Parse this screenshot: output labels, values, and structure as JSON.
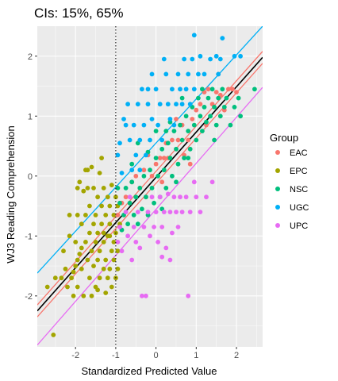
{
  "chart_data": {
    "type": "scatter",
    "title": "CIs: 15%, 65%",
    "xlabel": "Standardized Predicted Value",
    "ylabel": "WJ3 Reading Comprehension",
    "xlim": [
      -2.95,
      2.65
    ],
    "ylim": [
      -2.85,
      2.5
    ],
    "x_ticks": [
      -2,
      -1,
      0,
      1,
      2
    ],
    "y_ticks": [
      -2,
      -1,
      0,
      1,
      2
    ],
    "x_tick_labels": [
      "-2",
      "-1",
      "0",
      "1",
      "2"
    ],
    "y_tick_labels": [
      "-2",
      "-1",
      "0",
      "1",
      "2"
    ],
    "grid": true,
    "background": "#ebebeb",
    "reference_line": {
      "orientation": "vertical",
      "x": -1,
      "style": "dotted"
    },
    "legend": {
      "title": "Group",
      "position": "right",
      "entries": [
        {
          "label": "EAC",
          "color": "#f8766d"
        },
        {
          "label": "EPC",
          "color": "#a3a500"
        },
        {
          "label": "NSC",
          "color": "#00bf7d"
        },
        {
          "label": "UGC",
          "color": "#00b0f6"
        },
        {
          "label": "UPC",
          "color": "#e76bf3"
        }
      ]
    },
    "lines": [
      {
        "group": "UGC",
        "color": "#00b0f6",
        "x": [
          -2.95,
          2.65
        ],
        "y": [
          -1.62,
          2.5
        ]
      },
      {
        "group": "EAC",
        "color": "#f8766d",
        "x": [
          -2.95,
          2.65
        ],
        "y": [
          -2.15,
          2.08
        ]
      },
      {
        "group": "EAC",
        "color": "#f8766d",
        "x": [
          -2.95,
          2.65
        ],
        "y": [
          -2.35,
          1.88
        ]
      },
      {
        "group": "overall",
        "color": "#000000",
        "x": [
          -2.95,
          2.65
        ],
        "y": [
          -2.25,
          1.98
        ]
      },
      {
        "group": "UPC",
        "color": "#e76bf3",
        "x": [
          -2.95,
          2.65
        ],
        "y": [
          -2.82,
          1.48
        ]
      }
    ],
    "series": [
      {
        "name": "EPC",
        "color": "#a3a500",
        "points": [
          [
            -2.7,
            -1.85
          ],
          [
            -2.55,
            -2.65
          ],
          [
            -2.5,
            -1.7
          ],
          [
            -2.35,
            -1.7
          ],
          [
            -2.3,
            -1.25
          ],
          [
            -2.25,
            -1.55
          ],
          [
            -2.2,
            -1.85
          ],
          [
            -2.15,
            -0.65
          ],
          [
            -2.1,
            -1.7
          ],
          [
            -2.05,
            -2.0
          ],
          [
            -2.0,
            -1.1
          ],
          [
            -2.0,
            -1.5
          ],
          [
            -1.95,
            -0.65
          ],
          [
            -1.95,
            -1.85
          ],
          [
            -1.9,
            -1.3
          ],
          [
            -1.85,
            -0.8
          ],
          [
            -1.85,
            -1.55
          ],
          [
            -1.8,
            -2.0
          ],
          [
            -1.8,
            -0.25
          ],
          [
            -1.75,
            -1.1
          ],
          [
            -1.75,
            -0.65
          ],
          [
            -1.7,
            -1.4
          ],
          [
            -1.7,
            0.1
          ],
          [
            -1.65,
            -0.95
          ],
          [
            -1.65,
            -1.7
          ],
          [
            -1.65,
            -0.5
          ],
          [
            -1.6,
            -1.25
          ],
          [
            -1.6,
            -2.0
          ],
          [
            -1.55,
            -1.5
          ],
          [
            -1.55,
            -0.8
          ],
          [
            -1.55,
            -0.2
          ],
          [
            -1.5,
            -1.1
          ],
          [
            -1.5,
            -0.65
          ],
          [
            -1.5,
            -1.85
          ],
          [
            -1.45,
            -1.4
          ],
          [
            -1.45,
            -0.95
          ],
          [
            -1.45,
            -0.35
          ],
          [
            -1.4,
            -1.25
          ],
          [
            -1.4,
            0.05
          ],
          [
            -1.4,
            -1.7
          ],
          [
            -1.35,
            -0.5
          ],
          [
            -1.35,
            -0.8
          ],
          [
            -1.3,
            -1.55
          ],
          [
            -1.3,
            -1.1
          ],
          [
            -1.3,
            -0.2
          ],
          [
            -1.25,
            -1.4
          ],
          [
            -1.25,
            -0.65
          ],
          [
            -1.25,
            -1.95
          ],
          [
            -1.2,
            -1.0
          ],
          [
            -1.2,
            -0.35
          ],
          [
            -1.2,
            -1.7
          ],
          [
            -1.15,
            -1.55
          ],
          [
            -1.15,
            -0.8
          ],
          [
            -1.15,
            -0.5
          ],
          [
            -1.1,
            -1.25
          ],
          [
            -1.1,
            -1.85
          ],
          [
            -1.1,
            -0.15
          ],
          [
            -1.05,
            -1.1
          ],
          [
            -1.05,
            -0.65
          ],
          [
            -1.05,
            -1.4
          ],
          [
            -1.0,
            -0.95
          ],
          [
            -1.0,
            -0.35
          ],
          [
            -1.0,
            -1.7
          ],
          [
            -0.95,
            -1.25
          ],
          [
            -0.95,
            -0.5
          ],
          [
            -0.95,
            -1.55
          ],
          [
            -1.35,
            0.3
          ],
          [
            -1.75,
            0.1
          ],
          [
            -1.95,
            -0.2
          ],
          [
            -2.15,
            -1.0
          ],
          [
            -1.6,
            0.15
          ],
          [
            -1.9,
            -0.1
          ],
          [
            -1.85,
            -1.2
          ],
          [
            -1.45,
            -1.9
          ],
          [
            -2.05,
            -1.6
          ],
          [
            -1.15,
            -1.0
          ],
          [
            -0.9,
            -0.8
          ],
          [
            -1.7,
            -0.2
          ],
          [
            -1.3,
            -0.95
          ],
          [
            -1.95,
            -1.4
          ]
        ]
      },
      {
        "name": "EAC",
        "color": "#f8766d",
        "points": [
          [
            -0.95,
            -0.65
          ],
          [
            -0.85,
            -0.45
          ],
          [
            -0.75,
            -0.35
          ],
          [
            -0.6,
            -0.1
          ],
          [
            -0.5,
            0.0
          ],
          [
            -0.4,
            -0.2
          ],
          [
            -0.3,
            0.1
          ],
          [
            -0.2,
            0.35
          ],
          [
            -0.1,
            0.0
          ],
          [
            0.0,
            0.2
          ],
          [
            0.1,
            0.3
          ],
          [
            0.2,
            0.3
          ],
          [
            0.3,
            0.3
          ],
          [
            0.4,
            0.6
          ],
          [
            0.55,
            0.6
          ],
          [
            0.65,
            0.85
          ],
          [
            0.7,
            0.35
          ],
          [
            0.8,
            0.6
          ],
          [
            0.9,
            0.95
          ],
          [
            1.0,
            1.1
          ],
          [
            1.1,
            1.2
          ],
          [
            1.2,
            1.4
          ],
          [
            1.3,
            1.45
          ],
          [
            1.4,
            1.2
          ],
          [
            1.5,
            1.4
          ],
          [
            1.6,
            1.35
          ],
          [
            1.7,
            1.1
          ],
          [
            1.8,
            1.45
          ],
          [
            1.9,
            1.45
          ],
          [
            2.0,
            1.4
          ],
          [
            0.25,
            0.55
          ],
          [
            -0.25,
            -0.35
          ],
          [
            0.5,
            0.95
          ],
          [
            1.25,
            0.85
          ],
          [
            -0.65,
            -0.45
          ],
          [
            0.15,
            -0.1
          ],
          [
            0.85,
            0.2
          ],
          [
            1.55,
            1.7
          ]
        ]
      },
      {
        "name": "NSC",
        "color": "#00bf7d",
        "points": [
          [
            -0.95,
            -0.2
          ],
          [
            -0.9,
            -0.45
          ],
          [
            -0.8,
            -0.65
          ],
          [
            -0.75,
            -0.2
          ],
          [
            -0.7,
            -0.8
          ],
          [
            -0.65,
            -0.45
          ],
          [
            -0.6,
            -0.1
          ],
          [
            -0.55,
            -0.65
          ],
          [
            -0.5,
            -0.35
          ],
          [
            -0.45,
            -0.8
          ],
          [
            -0.4,
            -0.2
          ],
          [
            -0.35,
            -0.55
          ],
          [
            -0.3,
            0.0
          ],
          [
            -0.25,
            -0.35
          ],
          [
            -0.2,
            -0.65
          ],
          [
            -0.15,
            0.1
          ],
          [
            -0.1,
            -0.2
          ],
          [
            -0.05,
            -0.45
          ],
          [
            0.0,
            0.3
          ],
          [
            0.05,
            0.0
          ],
          [
            0.1,
            -0.35
          ],
          [
            0.15,
            0.45
          ],
          [
            0.2,
            0.1
          ],
          [
            0.25,
            -0.2
          ],
          [
            0.3,
            0.55
          ],
          [
            0.35,
            0.3
          ],
          [
            0.4,
            0.0
          ],
          [
            0.45,
            0.75
          ],
          [
            0.5,
            0.45
          ],
          [
            0.55,
            0.2
          ],
          [
            0.6,
            0.85
          ],
          [
            0.65,
            0.6
          ],
          [
            0.7,
            0.3
          ],
          [
            0.75,
            1.0
          ],
          [
            0.8,
            0.75
          ],
          [
            0.85,
            0.45
          ],
          [
            0.9,
            1.15
          ],
          [
            0.95,
            0.85
          ],
          [
            1.0,
            0.6
          ],
          [
            1.05,
            1.3
          ],
          [
            1.1,
            1.0
          ],
          [
            1.15,
            0.75
          ],
          [
            1.2,
            1.15
          ],
          [
            1.25,
            0.9
          ],
          [
            1.3,
            1.3
          ],
          [
            1.35,
            1.0
          ],
          [
            1.4,
            1.45
          ],
          [
            1.45,
            1.15
          ],
          [
            1.5,
            0.85
          ],
          [
            1.55,
            1.3
          ],
          [
            1.6,
            1.0
          ],
          [
            1.65,
            1.45
          ],
          [
            1.7,
            1.15
          ],
          [
            1.75,
            1.3
          ],
          [
            1.85,
            0.85
          ],
          [
            1.95,
            1.15
          ],
          [
            2.1,
            1.0
          ],
          [
            2.45,
            1.45
          ],
          [
            -0.85,
            -0.9
          ],
          [
            -0.45,
            0.55
          ],
          [
            0.0,
            0.75
          ],
          [
            0.35,
            0.9
          ],
          [
            0.65,
            1.3
          ],
          [
            -0.2,
            0.4
          ],
          [
            0.15,
            -0.55
          ],
          [
            0.5,
            -0.1
          ],
          [
            1.15,
            1.45
          ],
          [
            0.8,
            0.3
          ],
          [
            -0.6,
            0.2
          ],
          [
            0.25,
            0.75
          ],
          [
            1.45,
            0.6
          ],
          [
            2.05,
            1.3
          ]
        ]
      },
      {
        "name": "UGC",
        "color": "#00b0f6",
        "points": [
          [
            -0.95,
            0.35
          ],
          [
            -0.85,
            0.05
          ],
          [
            -0.8,
            0.95
          ],
          [
            -0.7,
            1.2
          ],
          [
            -0.65,
            0.6
          ],
          [
            -0.6,
            0.1
          ],
          [
            -0.55,
            0.85
          ],
          [
            -0.5,
            0.35
          ],
          [
            -0.45,
            1.2
          ],
          [
            -0.4,
            0.6
          ],
          [
            -0.35,
            1.45
          ],
          [
            -0.3,
            0.85
          ],
          [
            -0.25,
            0.35
          ],
          [
            -0.2,
            1.2
          ],
          [
            -0.15,
            0.6
          ],
          [
            -0.1,
            0.95
          ],
          [
            0.0,
            1.45
          ],
          [
            0.05,
            0.85
          ],
          [
            0.1,
            1.2
          ],
          [
            0.15,
            0.6
          ],
          [
            0.25,
            1.7
          ],
          [
            0.3,
            1.2
          ],
          [
            0.35,
            0.95
          ],
          [
            0.4,
            1.45
          ],
          [
            0.5,
            1.2
          ],
          [
            0.55,
            1.7
          ],
          [
            0.6,
            1.45
          ],
          [
            0.7,
            1.95
          ],
          [
            0.75,
            1.45
          ],
          [
            0.8,
            1.7
          ],
          [
            0.85,
            1.2
          ],
          [
            0.9,
            1.95
          ],
          [
            0.95,
            1.45
          ],
          [
            1.05,
            1.7
          ],
          [
            1.1,
            2.0
          ],
          [
            1.2,
            1.7
          ],
          [
            1.35,
            1.95
          ],
          [
            1.5,
            2.0
          ],
          [
            1.55,
            1.7
          ],
          [
            1.6,
            1.95
          ],
          [
            1.65,
            2.3
          ],
          [
            1.95,
            2.0
          ],
          [
            2.1,
            2.0
          ],
          [
            0.95,
            2.35
          ],
          [
            -0.1,
            1.7
          ],
          [
            0.2,
            1.95
          ],
          [
            -0.75,
            0.85
          ],
          [
            -0.4,
            0.1
          ],
          [
            0.45,
            0.85
          ],
          [
            -0.2,
            1.45
          ],
          [
            0.65,
            1.2
          ],
          [
            -0.9,
            0.55
          ]
        ]
      },
      {
        "name": "UPC",
        "color": "#e76bf3",
        "points": [
          [
            -0.95,
            -1.1
          ],
          [
            -0.9,
            -0.85
          ],
          [
            -0.85,
            -1.25
          ],
          [
            -0.75,
            -0.6
          ],
          [
            -0.7,
            -1.0
          ],
          [
            -0.6,
            -1.4
          ],
          [
            -0.55,
            -0.85
          ],
          [
            -0.5,
            -1.1
          ],
          [
            -0.45,
            -0.6
          ],
          [
            -0.4,
            -1.2
          ],
          [
            -0.3,
            -0.85
          ],
          [
            -0.25,
            -2.0
          ],
          [
            -0.2,
            -0.6
          ],
          [
            -0.15,
            -1.0
          ],
          [
            -0.1,
            -0.35
          ],
          [
            -0.05,
            -0.85
          ],
          [
            0.0,
            -0.6
          ],
          [
            0.05,
            -1.1
          ],
          [
            0.1,
            -0.35
          ],
          [
            0.15,
            -0.85
          ],
          [
            0.2,
            -0.6
          ],
          [
            0.25,
            -1.2
          ],
          [
            0.3,
            -0.3
          ],
          [
            0.35,
            -0.6
          ],
          [
            0.4,
            -0.95
          ],
          [
            0.45,
            -0.35
          ],
          [
            0.5,
            -0.6
          ],
          [
            0.55,
            -0.85
          ],
          [
            0.6,
            -0.35
          ],
          [
            0.65,
            -0.6
          ],
          [
            0.75,
            -0.35
          ],
          [
            0.8,
            -2.0
          ],
          [
            0.85,
            -0.6
          ],
          [
            0.95,
            -0.1
          ],
          [
            1.0,
            -0.35
          ],
          [
            1.1,
            -0.6
          ],
          [
            1.25,
            -0.35
          ],
          [
            1.4,
            -0.1
          ],
          [
            -0.35,
            -2.0
          ],
          [
            0.35,
            -1.4
          ],
          [
            -0.65,
            -0.35
          ],
          [
            0.15,
            -1.35
          ]
        ]
      }
    ]
  }
}
